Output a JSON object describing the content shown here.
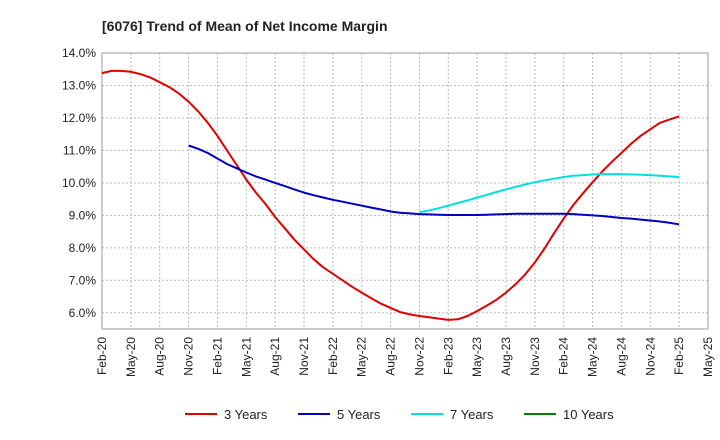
{
  "chart_data": {
    "type": "line",
    "title": "[6076]  Trend of Mean of Net Income Margin",
    "xlabel": "",
    "ylabel": "",
    "x_tick_labels": [
      "Feb-20",
      "May-20",
      "Aug-20",
      "Nov-20",
      "Feb-21",
      "May-21",
      "Aug-21",
      "Nov-21",
      "Feb-22",
      "May-22",
      "Aug-22",
      "Nov-22",
      "Feb-23",
      "May-23",
      "Aug-23",
      "Nov-23",
      "Feb-24",
      "May-24",
      "Aug-24",
      "Nov-24",
      "Feb-25",
      "May-25"
    ],
    "y_tick_labels": [
      "14.0%",
      "13.0%",
      "12.0%",
      "11.0%",
      "10.0%",
      "9.0%",
      "8.0%",
      "7.0%",
      "6.0%"
    ],
    "y_ticks": [
      14,
      13,
      12,
      11,
      10,
      9,
      8,
      7,
      6
    ],
    "ylim": [
      5.5,
      14.0
    ],
    "grid": true,
    "legend_position": "bottom",
    "series": [
      {
        "name": "3 Years",
        "color": "#e00000",
        "points": [
          [
            "Feb-20",
            13.38
          ],
          [
            "Mar-20",
            13.45
          ],
          [
            "Apr-20",
            13.45
          ],
          [
            "May-20",
            13.42
          ],
          [
            "Jun-20",
            13.35
          ],
          [
            "Jul-20",
            13.25
          ],
          [
            "Aug-20",
            13.1
          ],
          [
            "Sep-20",
            12.95
          ],
          [
            "Oct-20",
            12.75
          ],
          [
            "Nov-20",
            12.5
          ],
          [
            "Dec-20",
            12.2
          ],
          [
            "Jan-21",
            11.85
          ],
          [
            "Feb-21",
            11.45
          ],
          [
            "Mar-21",
            11.0
          ],
          [
            "Apr-21",
            10.55
          ],
          [
            "May-21",
            10.1
          ],
          [
            "Jun-21",
            9.7
          ],
          [
            "Jul-21",
            9.35
          ],
          [
            "Aug-21",
            8.95
          ],
          [
            "Sep-21",
            8.6
          ],
          [
            "Oct-21",
            8.25
          ],
          [
            "Nov-21",
            7.95
          ],
          [
            "Dec-21",
            7.65
          ],
          [
            "Jan-22",
            7.4
          ],
          [
            "Feb-22",
            7.2
          ],
          [
            "Mar-22",
            7.0
          ],
          [
            "Apr-22",
            6.8
          ],
          [
            "May-22",
            6.62
          ],
          [
            "Jun-22",
            6.45
          ],
          [
            "Jul-22",
            6.28
          ],
          [
            "Aug-22",
            6.15
          ],
          [
            "Sep-22",
            6.02
          ],
          [
            "Oct-22",
            5.95
          ],
          [
            "Nov-22",
            5.9
          ],
          [
            "Dec-22",
            5.86
          ],
          [
            "Jan-23",
            5.82
          ],
          [
            "Feb-23",
            5.78
          ],
          [
            "Mar-23",
            5.8
          ],
          [
            "Apr-23",
            5.9
          ],
          [
            "May-23",
            6.05
          ],
          [
            "Jun-23",
            6.22
          ],
          [
            "Jul-23",
            6.4
          ],
          [
            "Aug-23",
            6.62
          ],
          [
            "Sep-23",
            6.88
          ],
          [
            "Oct-23",
            7.18
          ],
          [
            "Nov-23",
            7.55
          ],
          [
            "Dec-23",
            7.98
          ],
          [
            "Jan-24",
            8.45
          ],
          [
            "Feb-24",
            8.9
          ],
          [
            "Mar-24",
            9.32
          ],
          [
            "Apr-24",
            9.68
          ],
          [
            "May-24",
            10.02
          ],
          [
            "Jun-24",
            10.35
          ],
          [
            "Jul-24",
            10.65
          ],
          [
            "Aug-24",
            10.92
          ],
          [
            "Sep-24",
            11.2
          ],
          [
            "Oct-24",
            11.45
          ],
          [
            "Nov-24",
            11.65
          ],
          [
            "Dec-24",
            11.85
          ],
          [
            "Jan-25",
            11.95
          ],
          [
            "Feb-25",
            12.05
          ]
        ]
      },
      {
        "name": "5 Years",
        "color": "#0000c0",
        "points": [
          [
            "Nov-20",
            11.15
          ],
          [
            "Dec-20",
            11.05
          ],
          [
            "Jan-21",
            10.92
          ],
          [
            "Feb-21",
            10.75
          ],
          [
            "Mar-21",
            10.58
          ],
          [
            "Apr-21",
            10.45
          ],
          [
            "May-21",
            10.32
          ],
          [
            "Jun-21",
            10.2
          ],
          [
            "Jul-21",
            10.1
          ],
          [
            "Aug-21",
            10.0
          ],
          [
            "Sep-21",
            9.9
          ],
          [
            "Oct-21",
            9.8
          ],
          [
            "Nov-21",
            9.7
          ],
          [
            "Dec-21",
            9.62
          ],
          [
            "Jan-22",
            9.55
          ],
          [
            "Feb-22",
            9.48
          ],
          [
            "Mar-22",
            9.42
          ],
          [
            "Apr-22",
            9.36
          ],
          [
            "May-22",
            9.3
          ],
          [
            "Jun-22",
            9.24
          ],
          [
            "Jul-22",
            9.18
          ],
          [
            "Aug-22",
            9.12
          ],
          [
            "Sep-22",
            9.08
          ],
          [
            "Oct-22",
            9.06
          ],
          [
            "Nov-22",
            9.04
          ],
          [
            "Dec-22",
            9.03
          ],
          [
            "Jan-23",
            9.02
          ],
          [
            "Feb-23",
            9.01
          ],
          [
            "Mar-23",
            9.01
          ],
          [
            "Apr-23",
            9.01
          ],
          [
            "May-23",
            9.01
          ],
          [
            "Jun-23",
            9.02
          ],
          [
            "Jul-23",
            9.03
          ],
          [
            "Aug-23",
            9.04
          ],
          [
            "Sep-23",
            9.05
          ],
          [
            "Oct-23",
            9.05
          ],
          [
            "Nov-23",
            9.05
          ],
          [
            "Dec-23",
            9.05
          ],
          [
            "Jan-24",
            9.05
          ],
          [
            "Feb-24",
            9.05
          ],
          [
            "Mar-24",
            9.04
          ],
          [
            "Apr-24",
            9.02
          ],
          [
            "May-24",
            9.0
          ],
          [
            "Jun-24",
            8.98
          ],
          [
            "Jul-24",
            8.95
          ],
          [
            "Aug-24",
            8.92
          ],
          [
            "Sep-24",
            8.9
          ],
          [
            "Oct-24",
            8.87
          ],
          [
            "Nov-24",
            8.84
          ],
          [
            "Dec-24",
            8.81
          ],
          [
            "Jan-25",
            8.77
          ],
          [
            "Feb-25",
            8.72
          ]
        ]
      },
      {
        "name": "7 Years",
        "color": "#00e0e0",
        "points": [
          [
            "Nov-22",
            9.1
          ],
          [
            "Dec-22",
            9.15
          ],
          [
            "Jan-23",
            9.22
          ],
          [
            "Feb-23",
            9.3
          ],
          [
            "Mar-23",
            9.38
          ],
          [
            "Apr-23",
            9.46
          ],
          [
            "May-23",
            9.55
          ],
          [
            "Jun-23",
            9.63
          ],
          [
            "Jul-23",
            9.72
          ],
          [
            "Aug-23",
            9.8
          ],
          [
            "Sep-23",
            9.88
          ],
          [
            "Oct-23",
            9.95
          ],
          [
            "Nov-23",
            10.02
          ],
          [
            "Dec-23",
            10.08
          ],
          [
            "Jan-24",
            10.13
          ],
          [
            "Feb-24",
            10.18
          ],
          [
            "Mar-24",
            10.22
          ],
          [
            "Apr-24",
            10.24
          ],
          [
            "May-24",
            10.26
          ],
          [
            "Jun-24",
            10.27
          ],
          [
            "Jul-24",
            10.27
          ],
          [
            "Aug-24",
            10.27
          ],
          [
            "Sep-24",
            10.26
          ],
          [
            "Oct-24",
            10.25
          ],
          [
            "Nov-24",
            10.24
          ],
          [
            "Dec-24",
            10.22
          ],
          [
            "Jan-25",
            10.2
          ],
          [
            "Feb-25",
            10.18
          ]
        ]
      },
      {
        "name": "10 Years",
        "color": "#008000",
        "points": []
      }
    ]
  }
}
